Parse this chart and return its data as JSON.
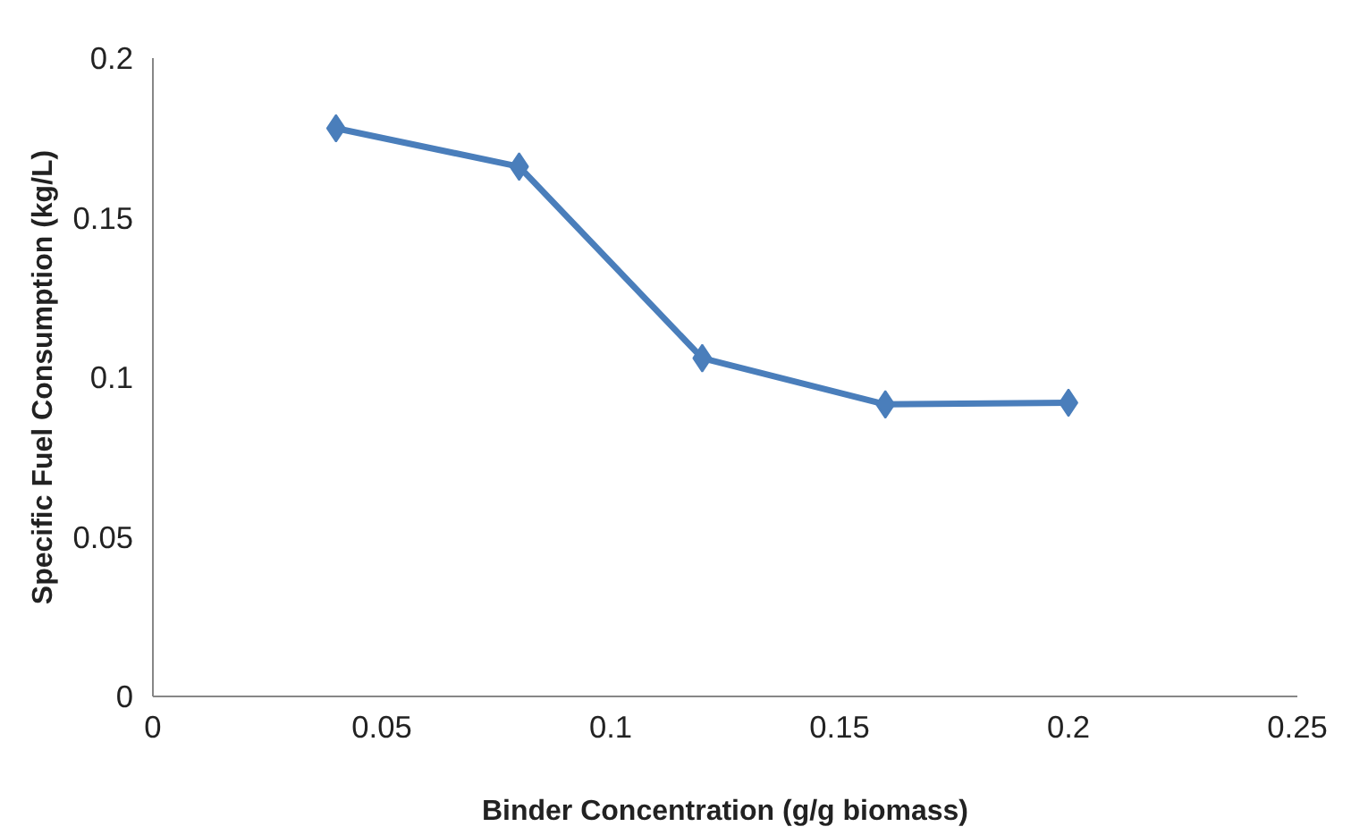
{
  "chart_data": {
    "type": "line",
    "xlabel": "Binder Concentration (g/g biomass)",
    "ylabel": "Specific Fuel Consumption (kg/L)",
    "x": [
      0.04,
      0.08,
      0.12,
      0.16,
      0.2
    ],
    "series": [
      {
        "color": "#4a7ebb",
        "values": [
          0.178,
          0.166,
          0.106,
          0.0915,
          0.092
        ]
      }
    ],
    "xlim": [
      0,
      0.25
    ],
    "xticks": [
      0,
      0.05,
      0.1,
      0.15,
      0.2,
      0.25
    ],
    "ylim": [
      0,
      0.2
    ],
    "yticks": [
      0,
      0.05,
      0.1,
      0.15,
      0.2
    ],
    "grid": false,
    "marker": "diamond",
    "line_style": "solid"
  }
}
